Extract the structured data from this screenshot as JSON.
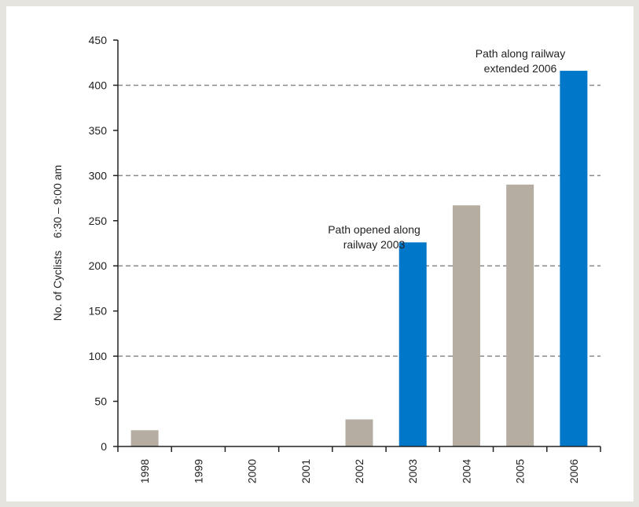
{
  "chart_data": {
    "type": "bar",
    "categories": [
      "1998",
      "1999",
      "2000",
      "2001",
      "2002",
      "2003",
      "2004",
      "2005",
      "2006"
    ],
    "values": [
      18,
      0,
      0,
      0,
      30,
      226,
      267,
      290,
      416
    ],
    "highlighted": [
      false,
      false,
      false,
      false,
      false,
      true,
      false,
      false,
      true
    ],
    "ylabel": "No. of Cyclists    6:30 – 9:00 am",
    "xlabel": "",
    "ylim": [
      0,
      450
    ],
    "yticks": [
      0,
      50,
      100,
      150,
      200,
      250,
      300,
      350,
      400,
      450
    ],
    "gridlines": [
      100,
      200,
      300,
      400
    ],
    "grid": "dashed horizontal at 100, 200, 300, 400",
    "annotations": [
      {
        "category": "2003",
        "lines": [
          "Path opened along",
          "railway 2003"
        ]
      },
      {
        "category": "2006",
        "lines": [
          "Path along railway",
          "extended 2006"
        ]
      }
    ],
    "colors": {
      "bar_default": "#b5ada1",
      "bar_highlight": "#0077c8",
      "gridline": "#8a8a8a",
      "axis": "#222222",
      "text": "#222222"
    }
  }
}
